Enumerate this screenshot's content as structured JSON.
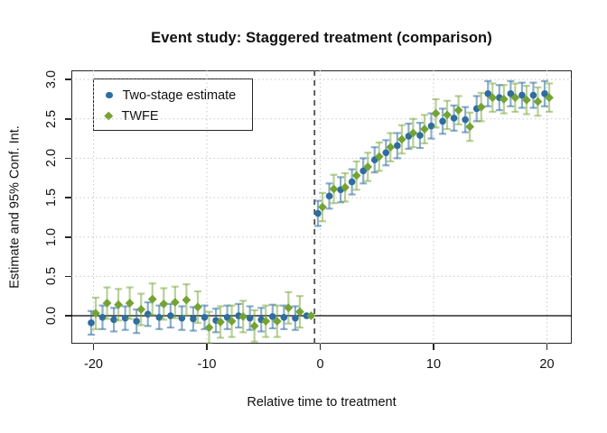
{
  "window": {
    "background": "#ffffff"
  },
  "chart_data": {
    "type": "scatter",
    "title": "Event study: Staggered treatment (comparison)",
    "xlabel": "Relative time to treatment",
    "ylabel": "Estimate and 95% Conf. Int.",
    "xlim": [
      -21.95,
      22.19
    ],
    "ylim": [
      -0.355,
      3.116
    ],
    "xticks": [
      -20,
      -10,
      0,
      10,
      20
    ],
    "xtick_labels": [
      "-20",
      "-10",
      "0",
      "10",
      "20"
    ],
    "yticks": [
      0.0,
      0.5,
      1.0,
      1.5,
      2.0,
      2.5,
      3.0
    ],
    "ytick_labels": [
      "0.0",
      "0.5",
      "1.0",
      "1.5",
      "2.0",
      "2.5",
      "3.0"
    ],
    "grid": "dotted, both axes, at tick positions",
    "legend_position": "top-left",
    "zero_hline_y": 0,
    "treatment_vline_x": -0.5,
    "reference_period_x": -1,
    "colors": {
      "frame": "#262626",
      "grid": "#c8c8c8",
      "zero_line": "#000000",
      "treatment_line": "#4d4d4d",
      "two_stage": "#2E6D9E",
      "two_stage_ci": "rgba(46,109,158,0.55)",
      "twfe": "#74A333",
      "twfe_ci": "rgba(116,163,51,0.5)"
    },
    "x": [
      -20,
      -19,
      -18,
      -17,
      -16,
      -15,
      -14,
      -13,
      -12,
      -11,
      -10,
      -9,
      -8,
      -7,
      -6,
      -5,
      -4,
      -3,
      -2,
      -1,
      0,
      1,
      2,
      3,
      4,
      5,
      6,
      7,
      8,
      9,
      10,
      11,
      12,
      13,
      14,
      15,
      16,
      17,
      18,
      19,
      20
    ],
    "series": [
      {
        "name": "Two-stage estimate",
        "marker": "circle",
        "color": "#2E6D9E",
        "ci_color": "rgba(46,109,158,0.55)",
        "x_offset": -0.2,
        "values": [
          -0.09,
          -0.02,
          -0.05,
          -0.03,
          -0.07,
          0.02,
          -0.02,
          0.0,
          -0.03,
          -0.04,
          -0.02,
          -0.06,
          -0.02,
          0.0,
          -0.03,
          -0.05,
          -0.01,
          -0.02,
          -0.03,
          0.0,
          1.3,
          1.52,
          1.6,
          1.7,
          1.84,
          1.98,
          2.07,
          2.16,
          2.28,
          2.29,
          2.41,
          2.47,
          2.51,
          2.49,
          2.63,
          2.82,
          2.77,
          2.82,
          2.8,
          2.8,
          2.82
        ],
        "ci_halfwidth": [
          0.15,
          0.15,
          0.15,
          0.15,
          0.15,
          0.15,
          0.15,
          0.15,
          0.15,
          0.15,
          0.15,
          0.15,
          0.15,
          0.15,
          0.15,
          0.15,
          0.15,
          0.15,
          0.15,
          0,
          0.16,
          0.16,
          0.16,
          0.16,
          0.16,
          0.16,
          0.16,
          0.16,
          0.16,
          0.16,
          0.16,
          0.16,
          0.16,
          0.16,
          0.16,
          0.16,
          0.16,
          0.16,
          0.16,
          0.16,
          0.16
        ]
      },
      {
        "name": "TWFE",
        "marker": "diamond",
        "color": "#74A333",
        "ci_color": "rgba(116,163,51,0.5)",
        "x_offset": 0.2,
        "values": [
          0.03,
          0.16,
          0.14,
          0.16,
          0.08,
          0.21,
          0.15,
          0.17,
          0.2,
          0.11,
          -0.15,
          -0.08,
          -0.07,
          -0.01,
          -0.13,
          -0.07,
          -0.07,
          0.1,
          0.05,
          0.0,
          1.38,
          1.61,
          1.63,
          1.78,
          1.89,
          2.02,
          2.14,
          2.24,
          2.32,
          2.37,
          2.57,
          2.55,
          2.61,
          2.4,
          2.65,
          2.77,
          2.75,
          2.77,
          2.74,
          2.72,
          2.77
        ],
        "ci_halfwidth": [
          0.2,
          0.2,
          0.2,
          0.2,
          0.2,
          0.2,
          0.2,
          0.2,
          0.2,
          0.2,
          0.2,
          0.2,
          0.2,
          0.2,
          0.2,
          0.2,
          0.2,
          0.2,
          0.2,
          0,
          0.18,
          0.18,
          0.18,
          0.18,
          0.18,
          0.18,
          0.18,
          0.18,
          0.18,
          0.18,
          0.18,
          0.18,
          0.18,
          0.18,
          0.18,
          0.18,
          0.18,
          0.18,
          0.18,
          0.18,
          0.18
        ]
      }
    ]
  }
}
